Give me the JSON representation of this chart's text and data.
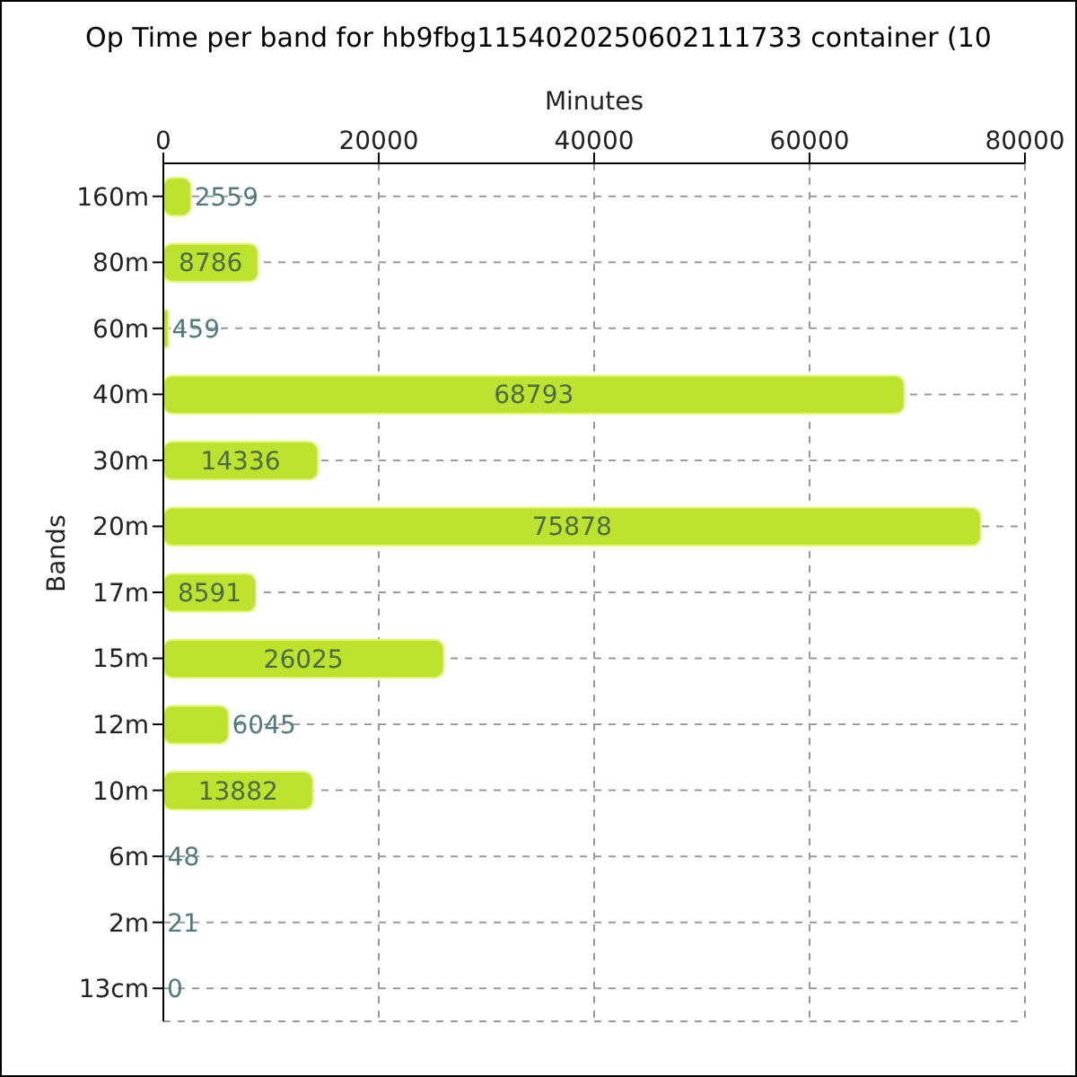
{
  "chart_data": {
    "type": "bar",
    "orientation": "horizontal",
    "title": "Op Time per band for hb9fbg1154020250602111733 container (10",
    "xlabel": "Minutes",
    "ylabel": "Bands",
    "categories": [
      "160m",
      "80m",
      "60m",
      "40m",
      "30m",
      "20m",
      "17m",
      "15m",
      "12m",
      "10m",
      "6m",
      "2m",
      "13cm"
    ],
    "values": [
      2559,
      8786,
      459,
      68793,
      14336,
      75878,
      8591,
      26025,
      6045,
      13882,
      48,
      21,
      0
    ],
    "color": "#bde22e",
    "xlim": [
      0,
      80000
    ],
    "xticks": [
      0,
      20000,
      40000,
      60000,
      80000
    ],
    "grid": true,
    "data_labels": true
  }
}
